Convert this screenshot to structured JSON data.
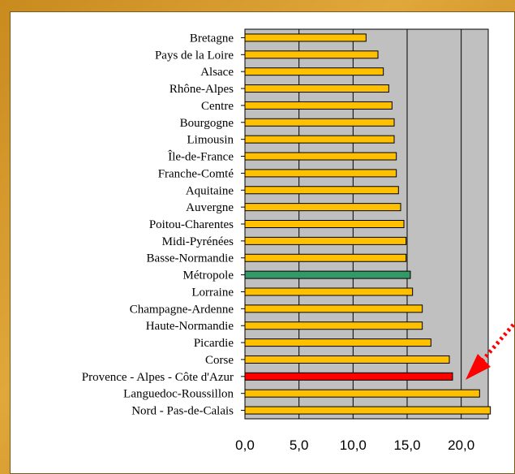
{
  "chart_data": {
    "type": "bar",
    "orientation": "horizontal",
    "title": "",
    "xlabel": "",
    "ylabel": "",
    "xlim": [
      0,
      22.5
    ],
    "xticks": [
      "0,0",
      "5,0",
      "10,0",
      "15,0",
      "20,0"
    ],
    "xtick_values": [
      0,
      5,
      10,
      15,
      20
    ],
    "grid": true,
    "categories": [
      "Bretagne",
      "Pays de la Loire",
      "Alsace",
      "Rhône-Alpes",
      "Centre",
      "Bourgogne",
      "Limousin",
      "Île-de-France",
      "Franche-Comté",
      "Aquitaine",
      "Auvergne",
      "Poitou-Charentes",
      "Midi-Pyrénées",
      "Basse-Normandie",
      "Métropole",
      "Lorraine",
      "Champagne-Ardenne",
      "Haute-Normandie",
      "Picardie",
      "Corse",
      "Provence - Alpes - Côte d'Azur",
      "Languedoc-Roussillon",
      "Nord - Pas-de-Calais"
    ],
    "values": [
      11.2,
      12.3,
      12.8,
      13.3,
      13.6,
      13.8,
      13.8,
      14.0,
      14.0,
      14.2,
      14.4,
      14.7,
      14.9,
      14.9,
      15.3,
      15.5,
      16.4,
      16.4,
      17.2,
      18.9,
      19.2,
      21.7,
      22.7
    ],
    "bar_colors": {
      "default": "#ffc000",
      "Métropole": "#339966",
      "Provence - Alpes - Côte d'Azur": "#ff0000"
    },
    "plot_background": "#c0c0c0",
    "annotation": {
      "type": "arrow",
      "color": "#ff0000",
      "points_to": "Languedoc-Roussillon"
    }
  }
}
